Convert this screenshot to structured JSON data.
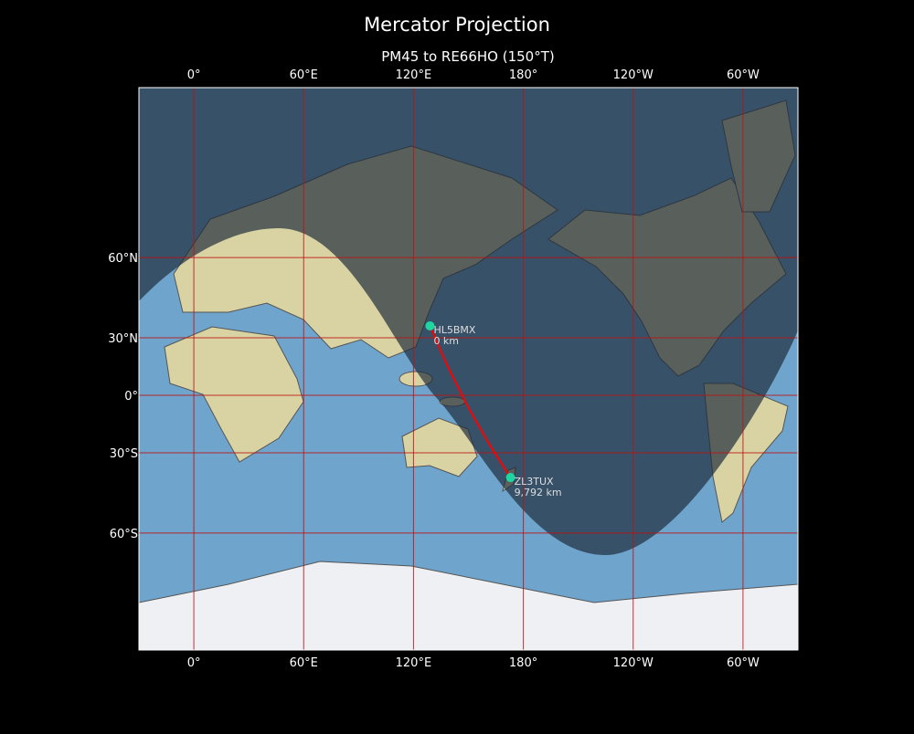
{
  "title": "Mercator Projection",
  "subtitle": "PM45 to RE66HO (150°T)",
  "projection": "mercator",
  "lon_range": [
    -30,
    330
  ],
  "lat_range": [
    -80,
    84
  ],
  "lon_ticks": [
    {
      "value": 0,
      "label": "0°"
    },
    {
      "value": 60,
      "label": "60°E"
    },
    {
      "value": 120,
      "label": "120°E"
    },
    {
      "value": 180,
      "label": "180°"
    },
    {
      "value": 240,
      "label": "120°W"
    },
    {
      "value": 300,
      "label": "60°W"
    }
  ],
  "lat_ticks": [
    {
      "value": 60,
      "label": "60°N"
    },
    {
      "value": 30,
      "label": "30°N"
    },
    {
      "value": 0,
      "label": "0°"
    },
    {
      "value": -30,
      "label": "30°S"
    },
    {
      "value": -60,
      "label": "60°S"
    }
  ],
  "colors": {
    "grid": "#c01010",
    "path": "#ff0000",
    "marker": "#1ed6a0",
    "ocean": "#6fa4cc",
    "land": "#d9d3a4",
    "night": "#1c2a38"
  },
  "stations": [
    {
      "call": "HL5BMX",
      "distance": "0 km",
      "lon": 129,
      "lat": 35.5
    },
    {
      "call": "ZL3TUX",
      "distance": "9,792 km",
      "lon": 173,
      "lat": -41
    }
  ]
}
